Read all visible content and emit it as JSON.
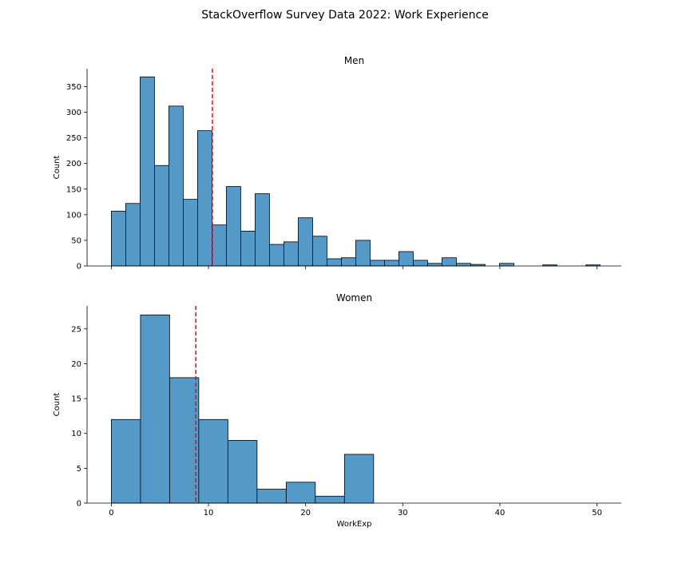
{
  "figure": {
    "title": "StackOverflow Survey Data 2022: Work Experience"
  },
  "chart_data": [
    {
      "type": "bar",
      "subtype": "histogram",
      "title": "Men",
      "xlabel": "",
      "ylabel": "Count",
      "xlim": [
        -2.5,
        52.5
      ],
      "ylim": [
        0,
        385
      ],
      "yticks": [
        0,
        50,
        100,
        150,
        200,
        250,
        300,
        350
      ],
      "xticks": [
        0,
        10,
        20,
        30,
        40,
        50
      ],
      "show_xticklabels": false,
      "bin_start": 0,
      "bin_width": 1.48,
      "values": [
        107,
        122,
        369,
        196,
        312,
        130,
        264,
        80,
        155,
        68,
        141,
        42,
        47,
        94,
        58,
        14,
        16,
        50,
        11,
        11,
        28,
        11,
        5,
        16,
        5,
        3,
        0,
        5,
        0,
        0,
        2,
        0,
        0,
        2
      ],
      "mean_line": 10.4,
      "bar_color": "#5499c7",
      "mean_line_color": "#ff0000",
      "grid": false
    },
    {
      "type": "bar",
      "subtype": "histogram",
      "title": "Women",
      "xlabel": "WorkExp",
      "ylabel": "Count",
      "xlim": [
        -2.5,
        52.5
      ],
      "ylim": [
        0,
        28.3
      ],
      "yticks": [
        0,
        5,
        10,
        15,
        20,
        25
      ],
      "xticks": [
        0,
        10,
        20,
        30,
        40,
        50
      ],
      "show_xticklabels": true,
      "bin_start": 0,
      "bin_width": 3,
      "values": [
        12,
        27,
        18,
        12,
        9,
        2,
        3,
        1,
        7
      ],
      "mean_line": 8.7,
      "bar_color": "#5499c7",
      "mean_line_color": "#ff0000",
      "grid": false
    }
  ]
}
